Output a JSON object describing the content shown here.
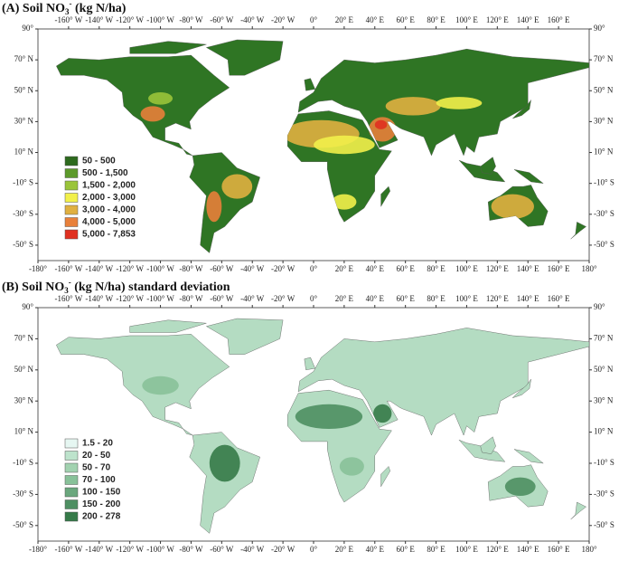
{
  "panels": [
    {
      "title": {
        "prefix": "(A) Soil NO",
        "sub": "3",
        "sup": "-",
        "suffix": " (kg N/ha)"
      },
      "legend": [
        {
          "label": "50 - 500",
          "color": "#2d6a1e"
        },
        {
          "label": "500 - 1,500",
          "color": "#5c9a2a"
        },
        {
          "label": "1,500 - 2,000",
          "color": "#9ac43a"
        },
        {
          "label": "2,000 - 3,000",
          "color": "#f2f04a"
        },
        {
          "label": "3,000 - 4,000",
          "color": "#e0b040"
        },
        {
          "label": "4,000 - 5,000",
          "color": "#e8803a"
        },
        {
          "label": "5,000 - 7,853",
          "color": "#e03020"
        }
      ]
    },
    {
      "title": {
        "prefix": "(B) Soil NO",
        "sub": "3",
        "sup": "-",
        "suffix": " (kg N/ha) standard deviation"
      },
      "legend": [
        {
          "label": "1.5 - 20",
          "color": "#e6f7f2"
        },
        {
          "label": "20 - 50",
          "color": "#bde3cc"
        },
        {
          "label": "50 - 70",
          "color": "#a2d2b0"
        },
        {
          "label": "70 - 100",
          "color": "#88c199"
        },
        {
          "label": "100 - 150",
          "color": "#6aa77d"
        },
        {
          "label": "150 - 200",
          "color": "#4e8f62"
        },
        {
          "label": "200 - 278",
          "color": "#357a48"
        }
      ]
    }
  ],
  "lat_ticks": [
    {
      "value": 90,
      "label": "90°"
    },
    {
      "value": 70,
      "label": "70° N"
    },
    {
      "value": 50,
      "label": "50° N"
    },
    {
      "value": 30,
      "label": "30° N"
    },
    {
      "value": 10,
      "label": "10° N"
    },
    {
      "value": -10,
      "label": "-10° S"
    },
    {
      "value": -30,
      "label": "-30° S"
    },
    {
      "value": -50,
      "label": "-50° S"
    }
  ],
  "lon_ticks": [
    {
      "value": -180,
      "label": "-180°"
    },
    {
      "value": -160,
      "label": "-160° W"
    },
    {
      "value": -140,
      "label": "-140° W"
    },
    {
      "value": -120,
      "label": "-120° W"
    },
    {
      "value": -100,
      "label": "-100° W"
    },
    {
      "value": -80,
      "label": "-80° W"
    },
    {
      "value": -60,
      "label": "-60° W"
    },
    {
      "value": -40,
      "label": "-40° W"
    },
    {
      "value": -20,
      "label": "-20° W"
    },
    {
      "value": 0,
      "label": "0°"
    },
    {
      "value": 20,
      "label": "20° E"
    },
    {
      "value": 40,
      "label": "40° E"
    },
    {
      "value": 60,
      "label": "60° E"
    },
    {
      "value": 80,
      "label": "80° E"
    },
    {
      "value": 100,
      "label": "100° E"
    },
    {
      "value": 120,
      "label": "120° E"
    },
    {
      "value": 140,
      "label": "140° E"
    },
    {
      "value": 160,
      "label": "160° E"
    },
    {
      "value": 180,
      "label": "180°"
    }
  ]
}
